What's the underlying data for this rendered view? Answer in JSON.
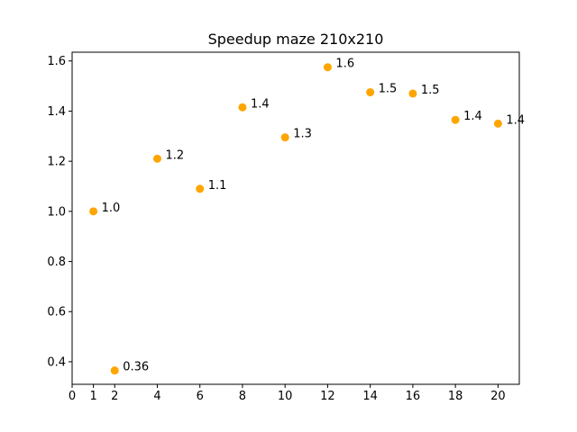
{
  "chart_data": {
    "type": "scatter",
    "title": "Speedup maze 210x210",
    "xlabel": "",
    "ylabel": "",
    "xlim": [
      0,
      21
    ],
    "ylim": [
      0.31,
      1.635
    ],
    "xticks": [
      "0",
      "1",
      "2",
      "4",
      "6",
      "8",
      "10",
      "12",
      "14",
      "16",
      "18",
      "20"
    ],
    "yticks": [
      "0.4",
      "0.6",
      "0.8",
      "1.0",
      "1.2",
      "1.4",
      "1.6"
    ],
    "grid": false,
    "legend": "none",
    "marker_color": "#ffa500",
    "points": [
      {
        "x": 1,
        "y": 1.0,
        "label": "1.0"
      },
      {
        "x": 2,
        "y": 0.365,
        "label": "0.36"
      },
      {
        "x": 4,
        "y": 1.21,
        "label": "1.2"
      },
      {
        "x": 6,
        "y": 1.09,
        "label": "1.1"
      },
      {
        "x": 8,
        "y": 1.415,
        "label": "1.4"
      },
      {
        "x": 10,
        "y": 1.295,
        "label": "1.3"
      },
      {
        "x": 12,
        "y": 1.575,
        "label": "1.6"
      },
      {
        "x": 14,
        "y": 1.475,
        "label": "1.5"
      },
      {
        "x": 16,
        "y": 1.47,
        "label": "1.5"
      },
      {
        "x": 18,
        "y": 1.365,
        "label": "1.4"
      },
      {
        "x": 20,
        "y": 1.35,
        "label": "1.4"
      }
    ]
  }
}
